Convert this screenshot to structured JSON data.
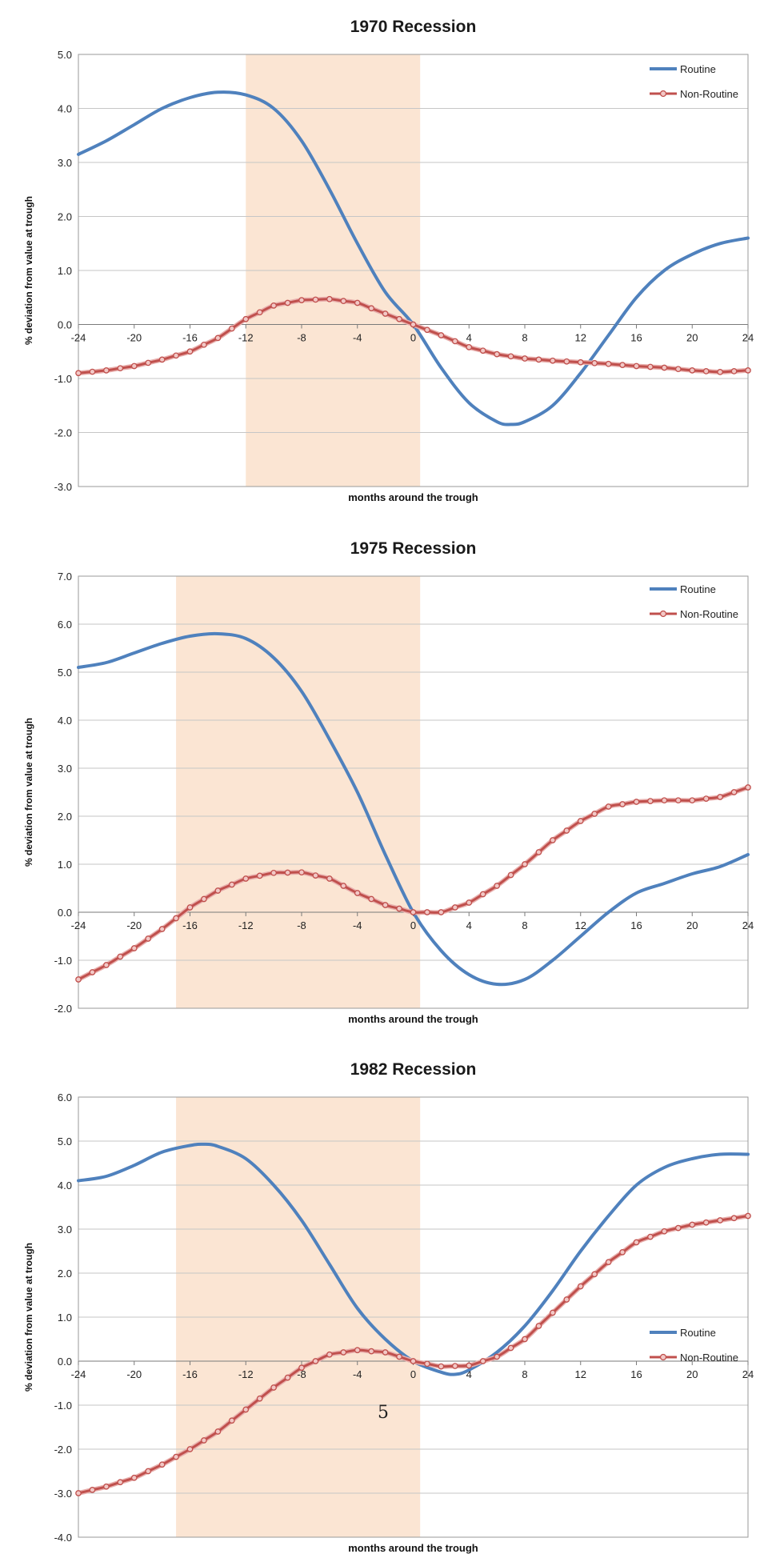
{
  "chart_data": [
    {
      "type": "line",
      "title": "1970 Recession",
      "xlabel": "months around the trough",
      "ylabel": "% deviation from value at trough",
      "xlim": [
        -24,
        24
      ],
      "ylim": [
        -3.0,
        5.0
      ],
      "xticks": [
        -24,
        -20,
        -16,
        -12,
        -8,
        -4,
        0,
        4,
        8,
        12,
        16,
        20,
        24
      ],
      "yticks": [
        5.0,
        4.0,
        3.0,
        2.0,
        1.0,
        0.0,
        -1.0,
        -2.0,
        -3.0
      ],
      "shaded_region": [
        -12,
        0.5
      ],
      "legend_position": "top-right",
      "series": [
        {
          "name": "Routine",
          "color": "#4f81bd",
          "markers": false,
          "points": [
            [
              -24,
              3.15
            ],
            [
              -22,
              3.4
            ],
            [
              -20,
              3.7
            ],
            [
              -18,
              4.0
            ],
            [
              -16,
              4.2
            ],
            [
              -14,
              4.3
            ],
            [
              -12,
              4.25
            ],
            [
              -10,
              4.0
            ],
            [
              -8,
              3.4
            ],
            [
              -6,
              2.5
            ],
            [
              -4,
              1.5
            ],
            [
              -2,
              0.6
            ],
            [
              0,
              0.0
            ],
            [
              2,
              -0.8
            ],
            [
              4,
              -1.45
            ],
            [
              6,
              -1.8
            ],
            [
              7,
              -1.85
            ],
            [
              8,
              -1.8
            ],
            [
              10,
              -1.5
            ],
            [
              12,
              -0.9
            ],
            [
              14,
              -0.2
            ],
            [
              16,
              0.5
            ],
            [
              18,
              1.0
            ],
            [
              20,
              1.3
            ],
            [
              22,
              1.5
            ],
            [
              24,
              1.6
            ]
          ]
        },
        {
          "name": "Non-Routine",
          "color": "#c0504d",
          "markers": true,
          "points": [
            [
              -24,
              -0.9
            ],
            [
              -22,
              -0.85
            ],
            [
              -20,
              -0.77
            ],
            [
              -18,
              -0.65
            ],
            [
              -16,
              -0.5
            ],
            [
              -14,
              -0.25
            ],
            [
              -12,
              0.1
            ],
            [
              -10,
              0.35
            ],
            [
              -8,
              0.45
            ],
            [
              -6,
              0.47
            ],
            [
              -4,
              0.4
            ],
            [
              -2,
              0.2
            ],
            [
              0,
              0.0
            ],
            [
              2,
              -0.2
            ],
            [
              4,
              -0.42
            ],
            [
              6,
              -0.55
            ],
            [
              8,
              -0.63
            ],
            [
              10,
              -0.67
            ],
            [
              12,
              -0.7
            ],
            [
              14,
              -0.73
            ],
            [
              16,
              -0.77
            ],
            [
              18,
              -0.8
            ],
            [
              20,
              -0.85
            ],
            [
              22,
              -0.88
            ],
            [
              24,
              -0.85
            ]
          ]
        }
      ]
    },
    {
      "type": "line",
      "title": "1975 Recession",
      "xlabel": "months around the trough",
      "ylabel": "% deviation from value at trough",
      "xlim": [
        -24,
        24
      ],
      "ylim": [
        -2.0,
        7.0
      ],
      "xticks": [
        -24,
        -20,
        -16,
        -12,
        -8,
        -4,
        0,
        4,
        8,
        12,
        16,
        20,
        24
      ],
      "yticks": [
        7.0,
        6.0,
        5.0,
        4.0,
        3.0,
        2.0,
        1.0,
        0.0,
        -1.0,
        -2.0
      ],
      "shaded_region": [
        -17,
        0.5
      ],
      "legend_position": "top-right",
      "series": [
        {
          "name": "Routine",
          "color": "#4f81bd",
          "markers": false,
          "points": [
            [
              -24,
              5.1
            ],
            [
              -22,
              5.2
            ],
            [
              -20,
              5.4
            ],
            [
              -18,
              5.6
            ],
            [
              -16,
              5.75
            ],
            [
              -14,
              5.8
            ],
            [
              -12,
              5.7
            ],
            [
              -10,
              5.3
            ],
            [
              -8,
              4.6
            ],
            [
              -6,
              3.6
            ],
            [
              -4,
              2.5
            ],
            [
              -2,
              1.2
            ],
            [
              0,
              0.0
            ],
            [
              2,
              -0.8
            ],
            [
              4,
              -1.3
            ],
            [
              6,
              -1.5
            ],
            [
              8,
              -1.4
            ],
            [
              10,
              -1.0
            ],
            [
              12,
              -0.5
            ],
            [
              14,
              0.0
            ],
            [
              16,
              0.4
            ],
            [
              18,
              0.6
            ],
            [
              20,
              0.8
            ],
            [
              22,
              0.95
            ],
            [
              24,
              1.2
            ]
          ]
        },
        {
          "name": "Non-Routine",
          "color": "#c0504d",
          "markers": true,
          "points": [
            [
              -24,
              -1.4
            ],
            [
              -22,
              -1.1
            ],
            [
              -20,
              -0.75
            ],
            [
              -18,
              -0.35
            ],
            [
              -16,
              0.1
            ],
            [
              -14,
              0.45
            ],
            [
              -12,
              0.7
            ],
            [
              -10,
              0.82
            ],
            [
              -8,
              0.83
            ],
            [
              -6,
              0.7
            ],
            [
              -4,
              0.4
            ],
            [
              -2,
              0.15
            ],
            [
              0,
              0.0
            ],
            [
              2,
              0.0
            ],
            [
              4,
              0.2
            ],
            [
              6,
              0.55
            ],
            [
              8,
              1.0
            ],
            [
              10,
              1.5
            ],
            [
              12,
              1.9
            ],
            [
              14,
              2.2
            ],
            [
              16,
              2.3
            ],
            [
              18,
              2.33
            ],
            [
              20,
              2.33
            ],
            [
              22,
              2.4
            ],
            [
              24,
              2.6
            ]
          ]
        }
      ]
    },
    {
      "type": "line",
      "title": "1982 Recession",
      "xlabel": "months around the trough",
      "ylabel": "% deviation from value at trough",
      "xlim": [
        -24,
        24
      ],
      "ylim": [
        -4.0,
        6.0
      ],
      "xticks": [
        -24,
        -20,
        -16,
        -12,
        -8,
        -4,
        0,
        4,
        8,
        12,
        16,
        20,
        24
      ],
      "yticks": [
        6.0,
        5.0,
        4.0,
        3.0,
        2.0,
        1.0,
        0.0,
        -1.0,
        -2.0,
        -3.0,
        -4.0
      ],
      "shaded_region": [
        -17,
        0.5
      ],
      "legend_position": "middle-right",
      "annotation": "5",
      "series": [
        {
          "name": "Routine",
          "color": "#4f81bd",
          "markers": false,
          "points": [
            [
              -24,
              4.1
            ],
            [
              -22,
              4.2
            ],
            [
              -20,
              4.45
            ],
            [
              -18,
              4.75
            ],
            [
              -16,
              4.9
            ],
            [
              -15,
              4.93
            ],
            [
              -14,
              4.88
            ],
            [
              -12,
              4.6
            ],
            [
              -10,
              4.0
            ],
            [
              -8,
              3.2
            ],
            [
              -6,
              2.2
            ],
            [
              -4,
              1.2
            ],
            [
              -2,
              0.5
            ],
            [
              0,
              0.0
            ],
            [
              2,
              -0.25
            ],
            [
              3,
              -0.3
            ],
            [
              4,
              -0.2
            ],
            [
              6,
              0.2
            ],
            [
              8,
              0.8
            ],
            [
              10,
              1.6
            ],
            [
              12,
              2.5
            ],
            [
              14,
              3.3
            ],
            [
              16,
              4.0
            ],
            [
              18,
              4.4
            ],
            [
              20,
              4.6
            ],
            [
              22,
              4.7
            ],
            [
              24,
              4.7
            ]
          ]
        },
        {
          "name": "Non-Routine",
          "color": "#c0504d",
          "markers": true,
          "points": [
            [
              -24,
              -3.0
            ],
            [
              -22,
              -2.85
            ],
            [
              -20,
              -2.65
            ],
            [
              -18,
              -2.35
            ],
            [
              -16,
              -2.0
            ],
            [
              -14,
              -1.6
            ],
            [
              -12,
              -1.1
            ],
            [
              -10,
              -0.6
            ],
            [
              -8,
              -0.15
            ],
            [
              -6,
              0.15
            ],
            [
              -4,
              0.25
            ],
            [
              -2,
              0.2
            ],
            [
              0,
              0.0
            ],
            [
              2,
              -0.12
            ],
            [
              4,
              -0.1
            ],
            [
              6,
              0.1
            ],
            [
              8,
              0.5
            ],
            [
              10,
              1.1
            ],
            [
              12,
              1.7
            ],
            [
              14,
              2.25
            ],
            [
              16,
              2.7
            ],
            [
              18,
              2.95
            ],
            [
              20,
              3.1
            ],
            [
              22,
              3.2
            ],
            [
              24,
              3.3
            ]
          ]
        }
      ]
    }
  ]
}
